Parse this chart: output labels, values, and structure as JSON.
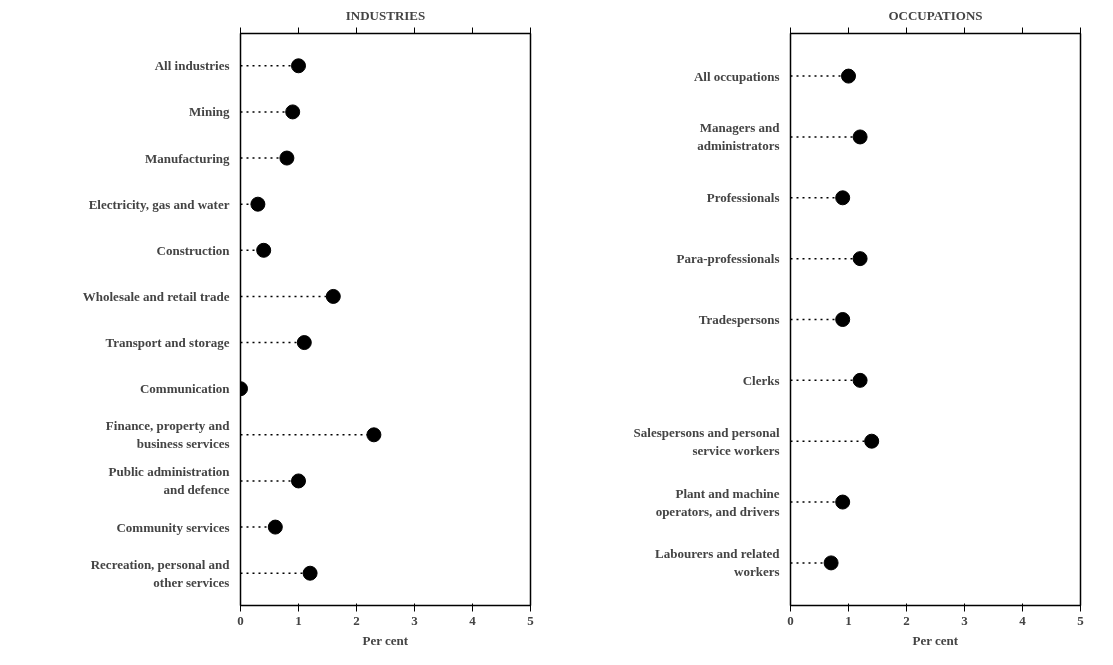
{
  "chart_data": [
    {
      "type": "lollipop",
      "title": "INDUSTRIES",
      "xlabel": "Per cent",
      "orientation": "horizontal",
      "categories": [
        "All industries",
        "Mining",
        "Manufacturing",
        "Electricity, gas and water",
        "Construction",
        "Wholesale and retail trade",
        "Transport and storage",
        "Communication",
        "Finance, property and\nbusiness services",
        "Public administration\nand defence",
        "Community services",
        "Recreation, personal and\nother services"
      ],
      "values": [
        1.0,
        0.9,
        0.8,
        0.3,
        0.4,
        1.6,
        1.1,
        0,
        2.3,
        1.0,
        0.6,
        1.2
      ],
      "color": "#000000",
      "xlim": [
        0,
        5
      ],
      "xticks": [
        0,
        1,
        2,
        3,
        4,
        5
      ],
      "grid": false,
      "marker": "circle",
      "line_style": "dotted"
    },
    {
      "type": "lollipop",
      "title": "OCCUPATIONS",
      "xlabel": "Per cent",
      "orientation": "horizontal",
      "categories": [
        "All occupations",
        "Managers and\nadministrators",
        "Professionals",
        "Para-professionals",
        "Tradespersons",
        "Clerks",
        "Salespersons and personal\nservice workers",
        "Plant and machine\noperators, and drivers",
        "Labourers and related\nworkers"
      ],
      "values": [
        1.0,
        1.2,
        0.9,
        1.2,
        0.9,
        1.2,
        1.4,
        0.9,
        0.7
      ],
      "color": "#000000",
      "xlim": [
        0,
        5
      ],
      "xticks": [
        0,
        1,
        2,
        3,
        4,
        5
      ],
      "grid": false,
      "marker": "circle",
      "line_style": "dotted"
    }
  ]
}
